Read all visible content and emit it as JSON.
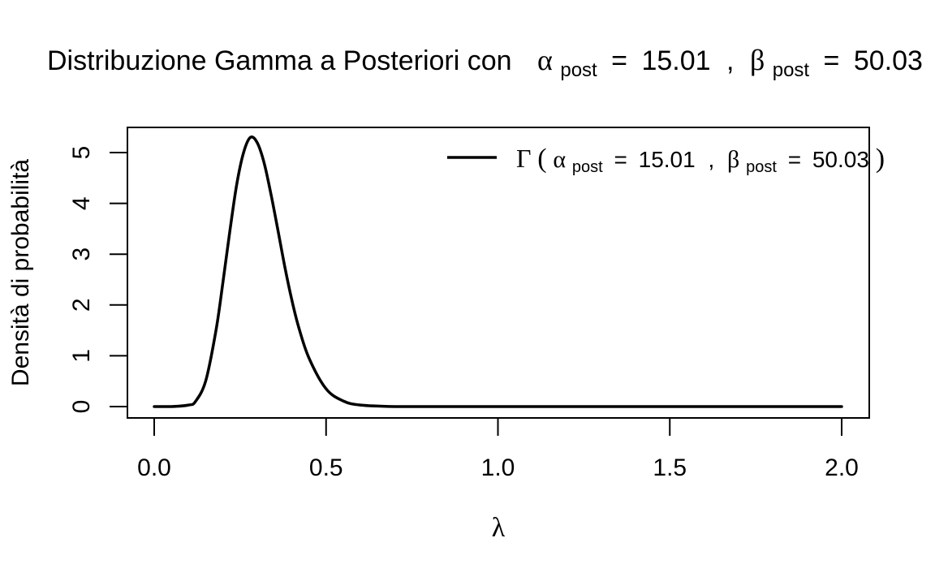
{
  "chart_data": {
    "type": "line",
    "title": {
      "prefix": "Distribuzione Gamma a Posteriori con",
      "alpha_symbol": "α",
      "beta_symbol": "β",
      "subscript": "post",
      "equals": "=",
      "separator": ",",
      "alpha_value": "15.01",
      "beta_value": "50.03"
    },
    "xlabel": "λ",
    "ylabel": "Densità di probabilità",
    "xlim": [
      0.0,
      2.0
    ],
    "ylim": [
      0,
      5.5
    ],
    "x_ticks": [
      "0.0",
      "0.5",
      "1.0",
      "1.5",
      "2.0"
    ],
    "y_ticks": [
      "0",
      "1",
      "2",
      "3",
      "4",
      "5"
    ],
    "grid": false,
    "legend": {
      "placement": "top-right",
      "gamma_symbol": "Γ",
      "alpha_symbol": "α",
      "beta_symbol": "β",
      "subscript": "post",
      "alpha_value": "15.01",
      "beta_value": "50.03"
    },
    "series": [
      {
        "name": "Γ(α_post = 15.01 , β_post = 50.03)",
        "color": "#000000",
        "x": [
          0.0,
          0.05,
          0.1,
          0.12,
          0.15,
          0.18,
          0.2,
          0.22,
          0.24,
          0.26,
          0.28,
          0.3,
          0.32,
          0.34,
          0.36,
          0.38,
          0.4,
          0.42,
          0.45,
          0.5,
          0.55,
          0.6,
          0.7,
          0.8,
          1.0,
          1.5,
          2.0
        ],
        "values": [
          0.0,
          0.0,
          0.03,
          0.1,
          0.51,
          1.51,
          2.45,
          3.45,
          4.37,
          5.0,
          5.3,
          5.19,
          4.79,
          4.17,
          3.47,
          2.75,
          2.11,
          1.57,
          0.96,
          0.35,
          0.11,
          0.03,
          0.0,
          0.0,
          0.0,
          0.0,
          0.0
        ]
      }
    ]
  }
}
